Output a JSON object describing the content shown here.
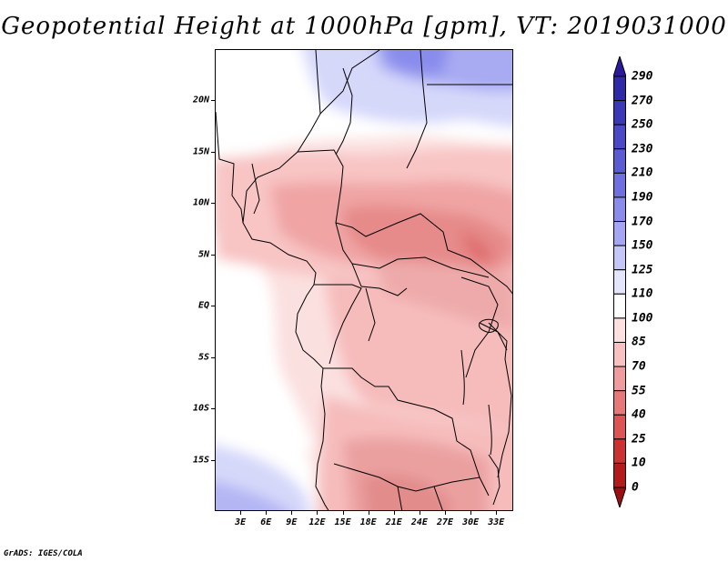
{
  "title": "Geopotential Height at 1000hPa [gpm], VT: 2019031000",
  "credit": "GrADS: IGES/COLA",
  "map": {
    "region": "Central Africa",
    "lon_range": [
      0,
      35
    ],
    "lat_range": [
      -20,
      25
    ],
    "y_axis_labels": [
      "20N",
      "15N",
      "10N",
      "5N",
      "EQ",
      "5S",
      "10S",
      "15S"
    ],
    "y_axis_values": [
      20,
      15,
      10,
      5,
      0,
      -5,
      -10,
      -15
    ],
    "x_axis_labels": [
      "3E",
      "6E",
      "9E",
      "12E",
      "15E",
      "18E",
      "21E",
      "24E",
      "27E",
      "30E",
      "33E"
    ],
    "x_axis_values": [
      3,
      6,
      9,
      12,
      15,
      18,
      21,
      24,
      27,
      30,
      33
    ]
  },
  "colorbar": {
    "labels": [
      "290",
      "270",
      "250",
      "230",
      "210",
      "190",
      "170",
      "150",
      "125",
      "110",
      "100",
      "85",
      "70",
      "55",
      "40",
      "25",
      "10",
      "0"
    ],
    "colors": [
      "#2a1a9a",
      "#2f2aa8",
      "#3a3ab8",
      "#4a4ac6",
      "#5a5cd4",
      "#6e70e0",
      "#8a8cec",
      "#a4a6f4",
      "#c4c6f8",
      "#e4e4fc",
      "#ffffff",
      "#fde0e0",
      "#f8c0c0",
      "#f09c9c",
      "#e67878",
      "#dc5454",
      "#cc3232",
      "#b41a1a",
      "#9a1010"
    ]
  }
}
